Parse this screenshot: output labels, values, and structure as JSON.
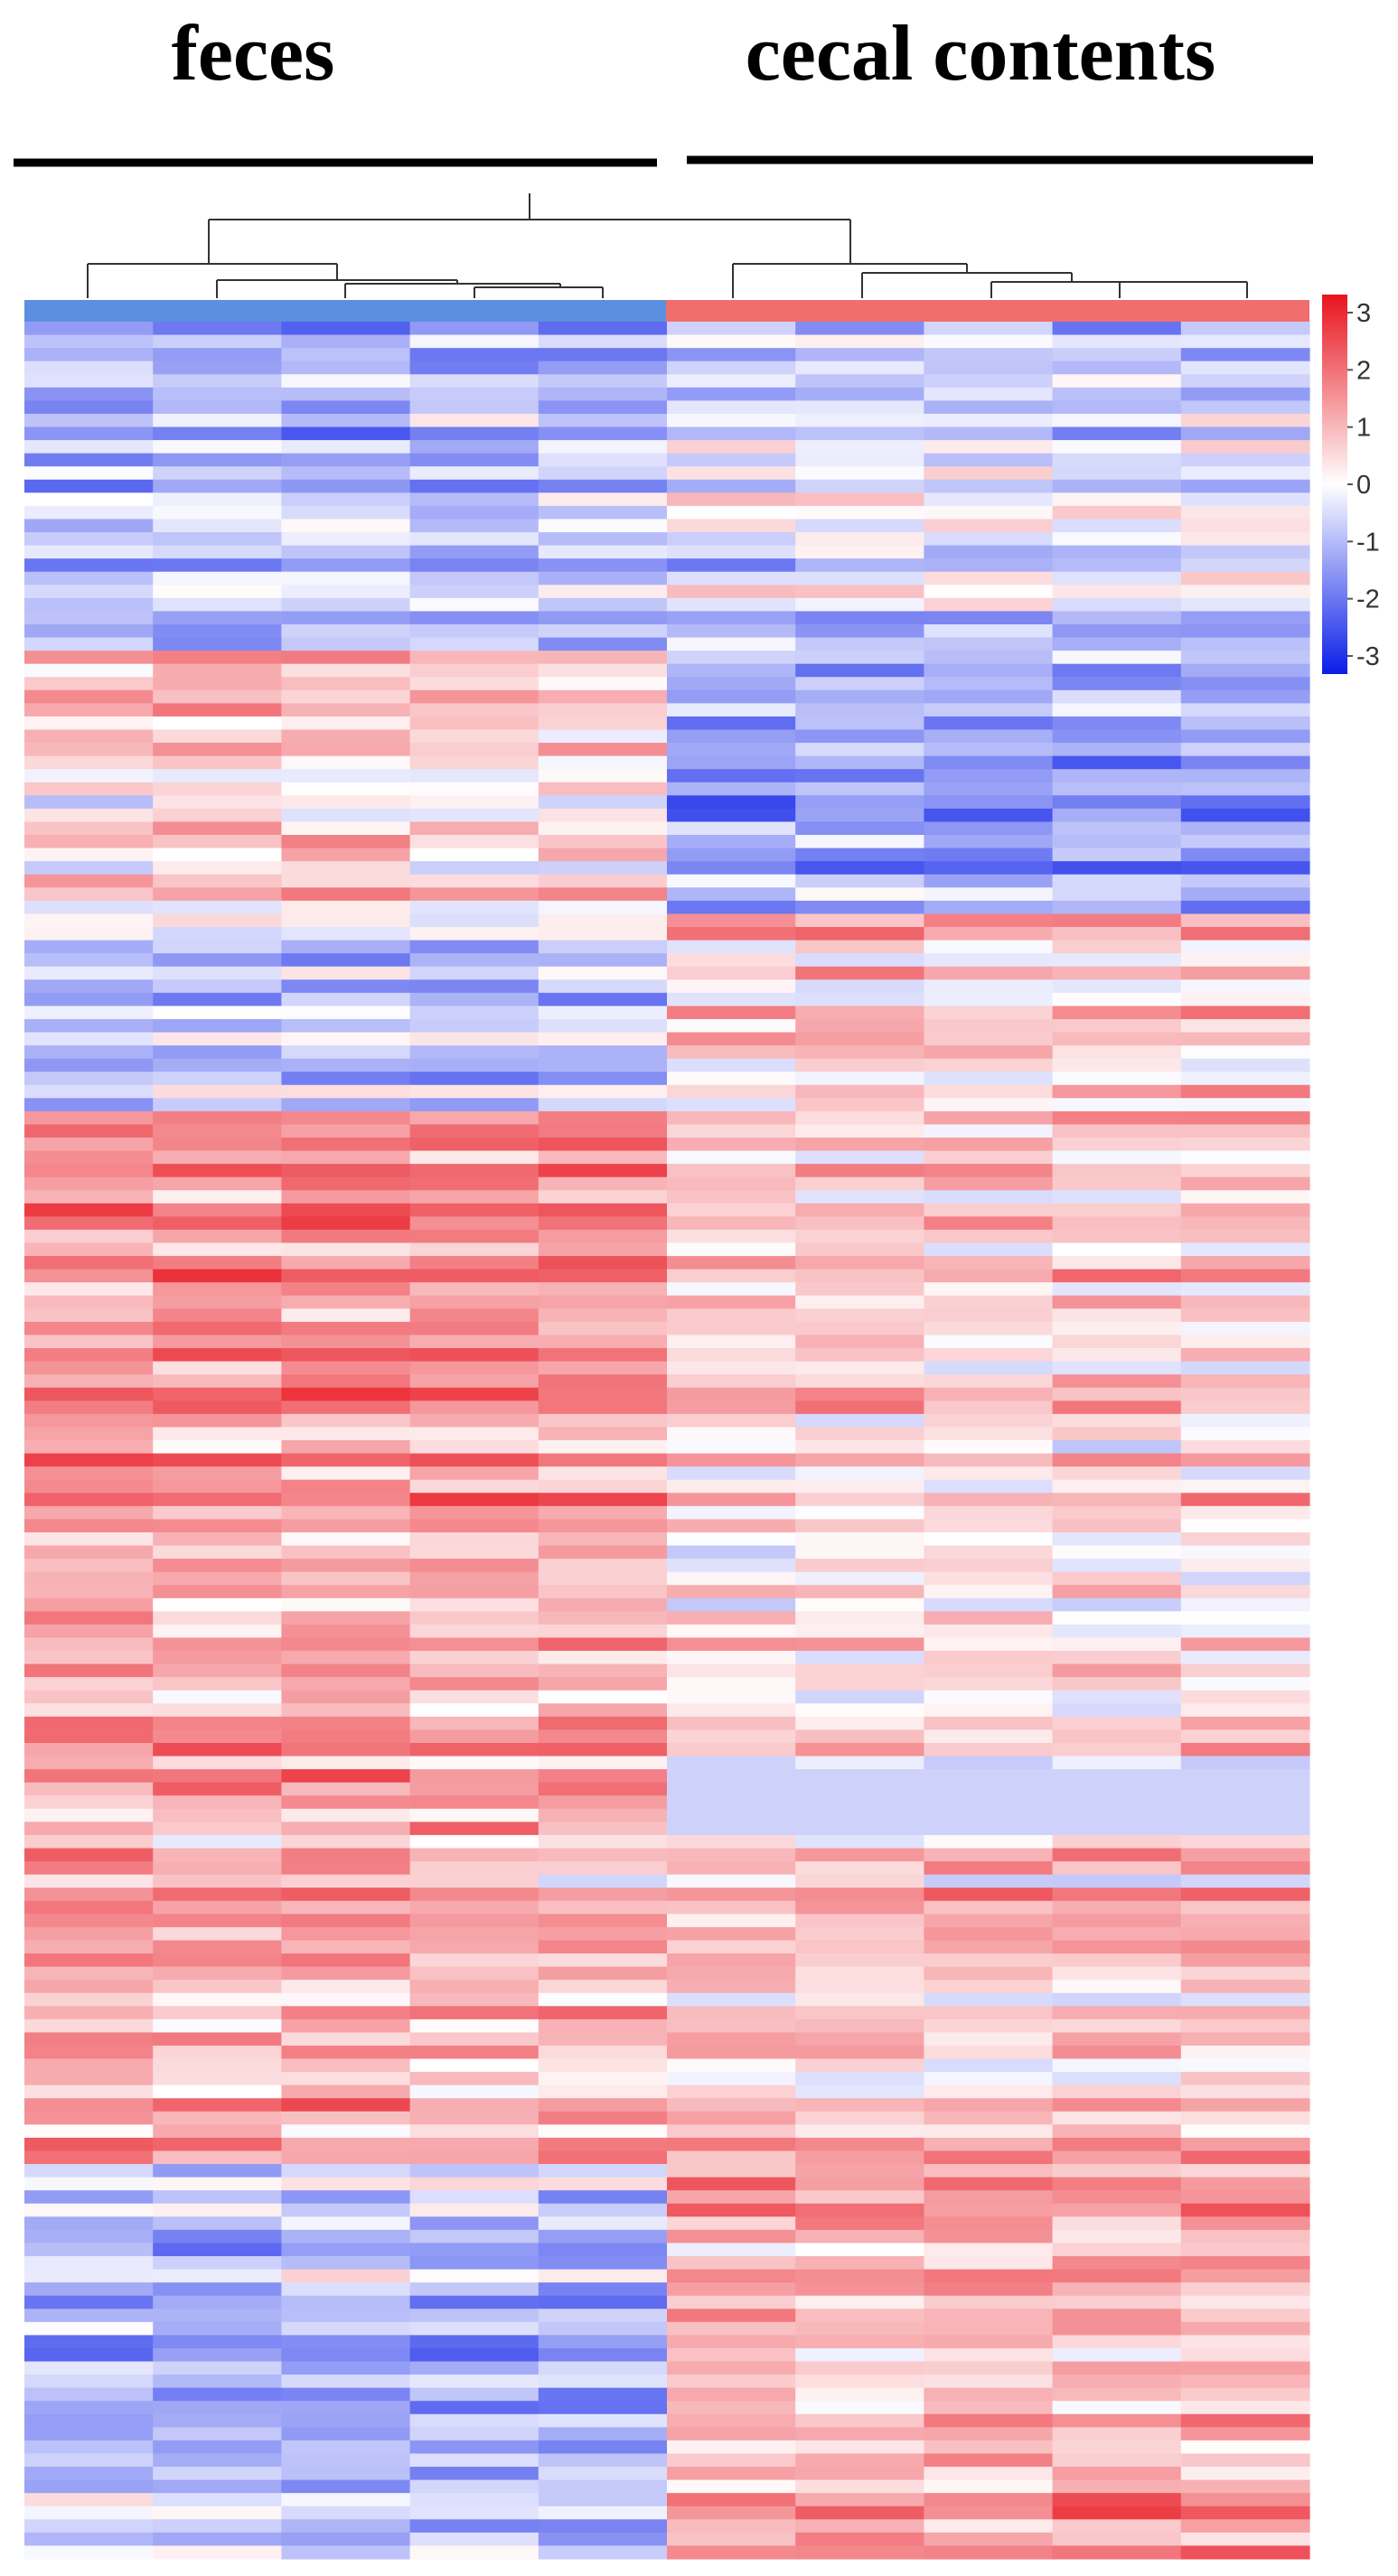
{
  "chart_data": {
    "type": "heatmap",
    "groups": [
      {
        "label": "feces",
        "color": "#5b8fe0",
        "samples": 5
      },
      {
        "label": "cecal contents",
        "color": "#f06e6e",
        "samples": 5
      }
    ],
    "color_scale": {
      "min": -3,
      "max": 3,
      "ticks": [
        "3",
        "2",
        "1",
        "0",
        "-1",
        "-2",
        "-3"
      ],
      "low_color": "#0a1ee8",
      "mid_color": "#ffffff",
      "high_color": "#e8141e"
    },
    "n_rows": 170,
    "n_columns": 10,
    "dendrogram": "hierarchical clustering of samples; feces and cecal contents form two clusters",
    "row_pattern": [
      {
        "rows": [
          0,
          25
        ],
        "feces": -0.9,
        "cecal": -0.4,
        "note": "upper block, both mostly blue"
      },
      {
        "rows": [
          25,
          45
        ],
        "feces": 0.4,
        "cecal": -1.3,
        "note": "feces light red, cecal blue"
      },
      {
        "rows": [
          45,
          60
        ],
        "feces": -0.6,
        "cecal": 0.6,
        "note": "mixed, cecal first column strong red"
      },
      {
        "rows": [
          60,
          110
        ],
        "feces": 1.2,
        "cecal": 0.5,
        "note": "feces red, cecal light red"
      },
      {
        "rows": [
          110,
          115
        ],
        "feces": 1.4,
        "cecal": -0.6,
        "note": "cecal uniform lavender band"
      },
      {
        "rows": [
          115,
          140
        ],
        "feces": 0.9,
        "cecal": 0.7,
        "note": "mixed red"
      },
      {
        "rows": [
          140,
          170
        ],
        "feces": -0.8,
        "cecal": 1.1,
        "note": "lower block, feces blue, cecal red"
      }
    ]
  }
}
